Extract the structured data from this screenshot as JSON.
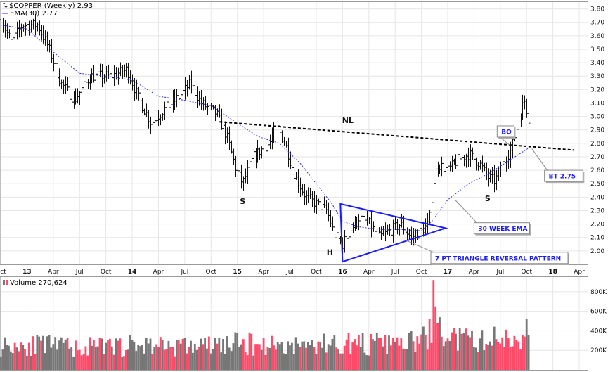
{
  "chart_data": [
    {
      "type": "ohlc",
      "title": "$COPPER (Weekly) 2.93",
      "legend": [
        {
          "label": "$COPPER (Weekly) 2.93",
          "color": "#000000"
        },
        {
          "label": "EMA(30) 2.77",
          "color": "#2a2ae0"
        }
      ],
      "y_axis": {
        "position": "right",
        "ylim": [
          1.9,
          3.85
        ],
        "ticks": [
          "3.80",
          "3.70",
          "3.60",
          "3.50",
          "3.40",
          "3.30",
          "3.20",
          "3.10",
          "3.00",
          "2.90",
          "2.80",
          "2.70",
          "2.60",
          "2.50",
          "2.40",
          "2.30",
          "2.20",
          "2.10",
          "2.00"
        ]
      },
      "x_axis": {
        "ticks": [
          {
            "label": "Oct",
            "t": 2012.75
          },
          {
            "label": "13",
            "t": 2013.0
          },
          {
            "label": "Apr",
            "t": 2013.25
          },
          {
            "label": "Jul",
            "t": 2013.5
          },
          {
            "label": "Oct",
            "t": 2013.75
          },
          {
            "label": "14",
            "t": 2014.0
          },
          {
            "label": "Apr",
            "t": 2014.25
          },
          {
            "label": "Jul",
            "t": 2014.5
          },
          {
            "label": "Oct",
            "t": 2014.75
          },
          {
            "label": "15",
            "t": 2015.0
          },
          {
            "label": "Apr",
            "t": 2015.25
          },
          {
            "label": "Jul",
            "t": 2015.5
          },
          {
            "label": "Oct",
            "t": 2015.75
          },
          {
            "label": "16",
            "t": 2016.0
          },
          {
            "label": "Apr",
            "t": 2016.25
          },
          {
            "label": "Jul",
            "t": 2016.5
          },
          {
            "label": "Oct",
            "t": 2016.75
          },
          {
            "label": "17",
            "t": 2017.0
          },
          {
            "label": "Apr",
            "t": 2017.25
          },
          {
            "label": "Jul",
            "t": 2017.5
          },
          {
            "label": "Oct",
            "t": 2017.75
          },
          {
            "label": "18",
            "t": 2018.0
          },
          {
            "label": "Apr",
            "t": 2018.25
          }
        ],
        "range": [
          2012.75,
          2018.33
        ]
      },
      "price_anchors": [
        [
          2012.75,
          3.72
        ],
        [
          2012.85,
          3.55
        ],
        [
          2012.95,
          3.68
        ],
        [
          2013.1,
          3.68
        ],
        [
          2013.2,
          3.52
        ],
        [
          2013.32,
          3.25
        ],
        [
          2013.45,
          3.12
        ],
        [
          2013.6,
          3.3
        ],
        [
          2013.8,
          3.3
        ],
        [
          2013.95,
          3.35
        ],
        [
          2014.05,
          3.15
        ],
        [
          2014.18,
          2.95
        ],
        [
          2014.3,
          3.05
        ],
        [
          2014.45,
          3.15
        ],
        [
          2014.55,
          3.25
        ],
        [
          2014.65,
          3.1
        ],
        [
          2014.8,
          3.02
        ],
        [
          2014.9,
          2.85
        ],
        [
          2014.98,
          2.62
        ],
        [
          2015.05,
          2.5
        ],
        [
          2015.15,
          2.7
        ],
        [
          2015.3,
          2.8
        ],
        [
          2015.38,
          2.92
        ],
        [
          2015.45,
          2.8
        ],
        [
          2015.55,
          2.55
        ],
        [
          2015.65,
          2.4
        ],
        [
          2015.75,
          2.35
        ],
        [
          2015.85,
          2.3
        ],
        [
          2015.92,
          2.12
        ],
        [
          2016.0,
          2.05
        ],
        [
          2016.07,
          2.15
        ],
        [
          2016.15,
          2.25
        ],
        [
          2016.25,
          2.2
        ],
        [
          2016.35,
          2.1
        ],
        [
          2016.45,
          2.15
        ],
        [
          2016.55,
          2.2
        ],
        [
          2016.65,
          2.1
        ],
        [
          2016.75,
          2.15
        ],
        [
          2016.82,
          2.2
        ],
        [
          2016.86,
          2.5
        ],
        [
          2016.9,
          2.65
        ],
        [
          2017.0,
          2.6
        ],
        [
          2017.1,
          2.68
        ],
        [
          2017.2,
          2.72
        ],
        [
          2017.3,
          2.65
        ],
        [
          2017.38,
          2.55
        ],
        [
          2017.45,
          2.52
        ],
        [
          2017.52,
          2.65
        ],
        [
          2017.6,
          2.75
        ],
        [
          2017.65,
          2.9
        ],
        [
          2017.7,
          3.05
        ],
        [
          2017.73,
          3.12
        ],
        [
          2017.78,
          2.95
        ]
      ],
      "ema_anchors": [
        [
          2012.75,
          3.68
        ],
        [
          2013.0,
          3.65
        ],
        [
          2013.25,
          3.48
        ],
        [
          2013.5,
          3.32
        ],
        [
          2013.75,
          3.3
        ],
        [
          2014.0,
          3.27
        ],
        [
          2014.25,
          3.15
        ],
        [
          2014.5,
          3.12
        ],
        [
          2014.75,
          3.08
        ],
        [
          2015.0,
          2.95
        ],
        [
          2015.2,
          2.85
        ],
        [
          2015.4,
          2.8
        ],
        [
          2015.6,
          2.65
        ],
        [
          2015.75,
          2.5
        ],
        [
          2015.9,
          2.35
        ],
        [
          2016.0,
          2.22
        ],
        [
          2016.15,
          2.18
        ],
        [
          2016.35,
          2.16
        ],
        [
          2016.55,
          2.16
        ],
        [
          2016.75,
          2.15
        ],
        [
          2016.85,
          2.22
        ],
        [
          2017.0,
          2.38
        ],
        [
          2017.2,
          2.5
        ],
        [
          2017.4,
          2.58
        ],
        [
          2017.6,
          2.68
        ],
        [
          2017.78,
          2.77
        ]
      ],
      "neckline": [
        [
          2014.83,
          2.96
        ],
        [
          2018.2,
          2.75
        ]
      ],
      "triangle": [
        [
          2015.98,
          2.35
        ],
        [
          2016.98,
          2.17
        ],
        [
          2016.0,
          1.92
        ]
      ],
      "annotations": [
        {
          "text": "NL",
          "t": 2016.05,
          "y": 2.95
        },
        {
          "text": "S",
          "t": 2015.05,
          "y": 2.35
        },
        {
          "text": "H",
          "t": 2015.88,
          "y": 1.97
        },
        {
          "text": "S",
          "t": 2017.38,
          "y": 2.37
        }
      ],
      "callouts": [
        {
          "text": "BO",
          "box_t": 2017.47,
          "box_y": 2.93,
          "point_t": 2017.6,
          "point_y": 2.78
        },
        {
          "text": "BT 2.75",
          "box_t": 2017.92,
          "box_y": 2.6,
          "point_t": 2017.8,
          "point_y": 2.76
        },
        {
          "text": "30 WEEK EMA",
          "box_t": 2017.25,
          "box_y": 2.21,
          "point_t": 2017.07,
          "point_y": 2.38
        },
        {
          "text": "7 PT TRIANGLE REVERSAL PATTERN",
          "box_t": 2016.84,
          "box_y": 1.99,
          "point_t": 2016.6,
          "point_y": 2.08
        }
      ]
    },
    {
      "type": "bar",
      "title": "Volume 270,624",
      "y_axis": {
        "position": "right",
        "ylim": [
          0,
          950000
        ],
        "ticks": [
          "800K",
          "600K",
          "400K",
          "200K"
        ]
      },
      "up_color": "#ff4a6a",
      "down_color": "#777777",
      "volume_anchors": [
        [
          2012.75,
          250000
        ],
        [
          2013.0,
          260000
        ],
        [
          2013.25,
          240000
        ],
        [
          2013.5,
          230000
        ],
        [
          2013.75,
          235000
        ],
        [
          2014.0,
          250000
        ],
        [
          2014.25,
          260000
        ],
        [
          2014.5,
          240000
        ],
        [
          2014.75,
          250000
        ],
        [
          2015.0,
          270000
        ],
        [
          2015.25,
          260000
        ],
        [
          2015.5,
          250000
        ],
        [
          2015.75,
          260000
        ],
        [
          2016.0,
          275000
        ],
        [
          2016.25,
          265000
        ],
        [
          2016.5,
          260000
        ],
        [
          2016.75,
          290000
        ],
        [
          2016.86,
          420000
        ],
        [
          2017.0,
          330000
        ],
        [
          2017.25,
          290000
        ],
        [
          2017.5,
          320000
        ],
        [
          2017.78,
          360000
        ]
      ],
      "spikes": [
        [
          2013.3,
          300000
        ],
        [
          2016.86,
          920000
        ],
        [
          2016.88,
          650000
        ],
        [
          2016.9,
          480000
        ],
        [
          2017.75,
          520000
        ]
      ]
    }
  ]
}
